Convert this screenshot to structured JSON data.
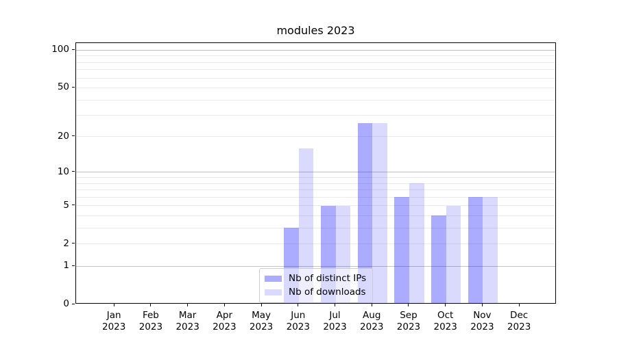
{
  "chart_data": {
    "type": "bar",
    "title": "modules 2023",
    "categories": [
      "Jan\n2023",
      "Feb\n2023",
      "Mar\n2023",
      "Apr\n2023",
      "May\n2023",
      "Jun\n2023",
      "Jul\n2023",
      "Aug\n2023",
      "Sep\n2023",
      "Oct\n2023",
      "Nov\n2023",
      "Dec\n2023"
    ],
    "series": [
      {
        "name": "Nb of distinct IPs",
        "color": "rgba(0,0,255,0.33)",
        "values": [
          0,
          0,
          0,
          0,
          0,
          3,
          5,
          26,
          6,
          4,
          6,
          0
        ]
      },
      {
        "name": "Nb of downloads",
        "color": "rgba(0,0,255,0.145)",
        "values": [
          0,
          0,
          0,
          0,
          0,
          16,
          5,
          26,
          8,
          5,
          6,
          0
        ]
      }
    ],
    "y_scale": "log1p",
    "ylim": [
      0,
      114
    ],
    "y_ticks": [
      {
        "value": 0,
        "label": "0"
      },
      {
        "value": 1,
        "label": "1"
      },
      {
        "value": 2,
        "label": "2"
      },
      {
        "value": 5,
        "label": "5"
      },
      {
        "value": 10,
        "label": "10"
      },
      {
        "value": 20,
        "label": "20"
      },
      {
        "value": 50,
        "label": "50"
      },
      {
        "value": 100,
        "label": "100"
      }
    ],
    "grid_major": [
      1,
      10,
      100
    ],
    "grid_minor": [
      2,
      3,
      4,
      5,
      6,
      7,
      8,
      9,
      20,
      30,
      40,
      50,
      60,
      70,
      80,
      90
    ],
    "legend_position": "lower center inside",
    "colors": {
      "grid_major": "#c3c3c3",
      "grid_minor": "#ebebeb",
      "spine": "#000000",
      "text": "#000000",
      "background": "#ffffff"
    }
  }
}
